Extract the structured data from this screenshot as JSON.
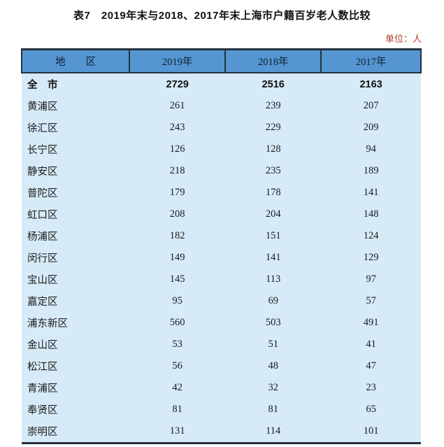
{
  "title": "表7　2019年末与2018、2017年末上海市户籍百岁老人数比较",
  "unit_note": "单位：人",
  "colors": {
    "header_background": "#5596d2",
    "body_background": "#d6eaf7",
    "border_dark": "#24303e",
    "unit_note_red": "#ae3b2b",
    "text": "#1b1b1b"
  },
  "table": {
    "header": [
      "地　　区",
      "2019年",
      "2018年",
      "2017年"
    ],
    "rows": [
      {
        "region": "全　市",
        "values": [
          "2729",
          "2516",
          "2163"
        ],
        "total": true
      },
      {
        "region": "黄浦区",
        "values": [
          "261",
          "239",
          "207"
        ],
        "total": false
      },
      {
        "region": "徐汇区",
        "values": [
          "243",
          "229",
          "209"
        ],
        "total": false
      },
      {
        "region": "长宁区",
        "values": [
          "126",
          "128",
          "94"
        ],
        "total": false
      },
      {
        "region": "静安区",
        "values": [
          "218",
          "235",
          "189"
        ],
        "total": false
      },
      {
        "region": "普陀区",
        "values": [
          "179",
          "178",
          "141"
        ],
        "total": false
      },
      {
        "region": "虹口区",
        "values": [
          "208",
          "204",
          "148"
        ],
        "total": false
      },
      {
        "region": "杨浦区",
        "values": [
          "182",
          "151",
          "124"
        ],
        "total": false
      },
      {
        "region": "闵行区",
        "values": [
          "149",
          "141",
          "129"
        ],
        "total": false
      },
      {
        "region": "宝山区",
        "values": [
          "145",
          "113",
          "97"
        ],
        "total": false
      },
      {
        "region": "嘉定区",
        "values": [
          "95",
          "69",
          "57"
        ],
        "total": false
      },
      {
        "region": "浦东新区",
        "values": [
          "560",
          "503",
          "491"
        ],
        "total": false
      },
      {
        "region": "金山区",
        "values": [
          "53",
          "51",
          "41"
        ],
        "total": false
      },
      {
        "region": "松江区",
        "values": [
          "56",
          "48",
          "47"
        ],
        "total": false
      },
      {
        "region": "青浦区",
        "values": [
          "42",
          "32",
          "23"
        ],
        "total": false
      },
      {
        "region": "奉贤区",
        "values": [
          "81",
          "81",
          "65"
        ],
        "total": false
      },
      {
        "region": "崇明区",
        "values": [
          "131",
          "114",
          "101"
        ],
        "total": false
      }
    ]
  }
}
